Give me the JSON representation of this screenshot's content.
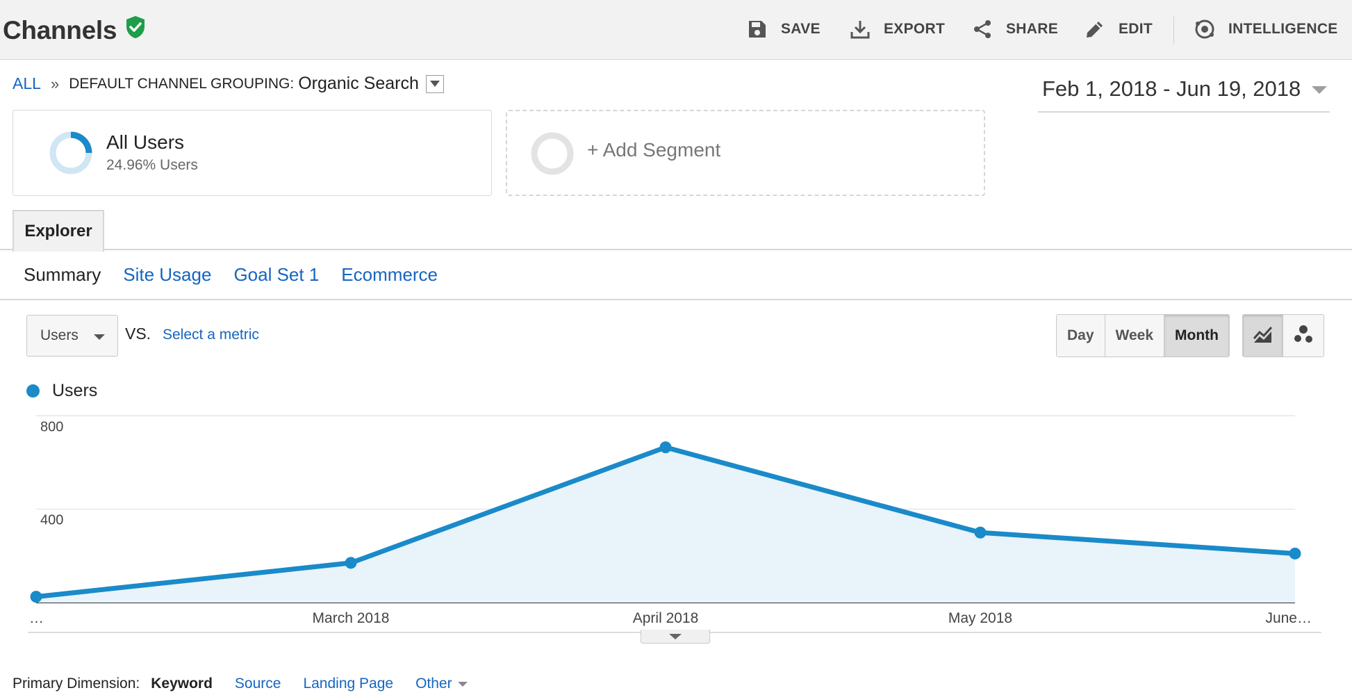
{
  "header": {
    "title": "Channels",
    "toolbar": {
      "save": "SAVE",
      "export": "EXPORT",
      "share": "SHARE",
      "edit": "EDIT",
      "intelligence": "INTELLIGENCE"
    }
  },
  "breadcrumb": {
    "all": "ALL",
    "separator": "»",
    "grouping_label": "DEFAULT CHANNEL GROUPING:",
    "grouping_value": "Organic Search"
  },
  "date_range": "Feb 1, 2018 - Jun 19, 2018",
  "segments": {
    "primary": {
      "name": "All Users",
      "detail": "24.96% Users",
      "share": 0.2496
    },
    "add_label": "+ Add Segment"
  },
  "tabs": {
    "explorer": "Explorer"
  },
  "subtabs": [
    "Summary",
    "Site Usage",
    "Goal Set 1",
    "Ecommerce"
  ],
  "controls": {
    "metric": "Users",
    "vs": "VS.",
    "select_metric": "Select a metric",
    "granularity": [
      "Day",
      "Week",
      "Month"
    ],
    "granularity_selected": "Month"
  },
  "colors": {
    "series": "#1a8ac9",
    "fill": "#e8f3fa",
    "link": "#1565c0",
    "shield": "#1e9e4a"
  },
  "chart_data": {
    "type": "area",
    "series": [
      {
        "name": "Users",
        "values": [
          25,
          170,
          665,
          300,
          210
        ]
      }
    ],
    "x": [
      "…",
      "March 2018",
      "April 2018",
      "May 2018",
      "June…"
    ],
    "y_ticks": [
      "800",
      "400"
    ],
    "ylim": [
      0,
      800
    ],
    "grid": true
  },
  "dimensions": {
    "label": "Primary Dimension:",
    "current": "Keyword",
    "links": [
      "Source",
      "Landing Page"
    ],
    "other": "Other"
  }
}
